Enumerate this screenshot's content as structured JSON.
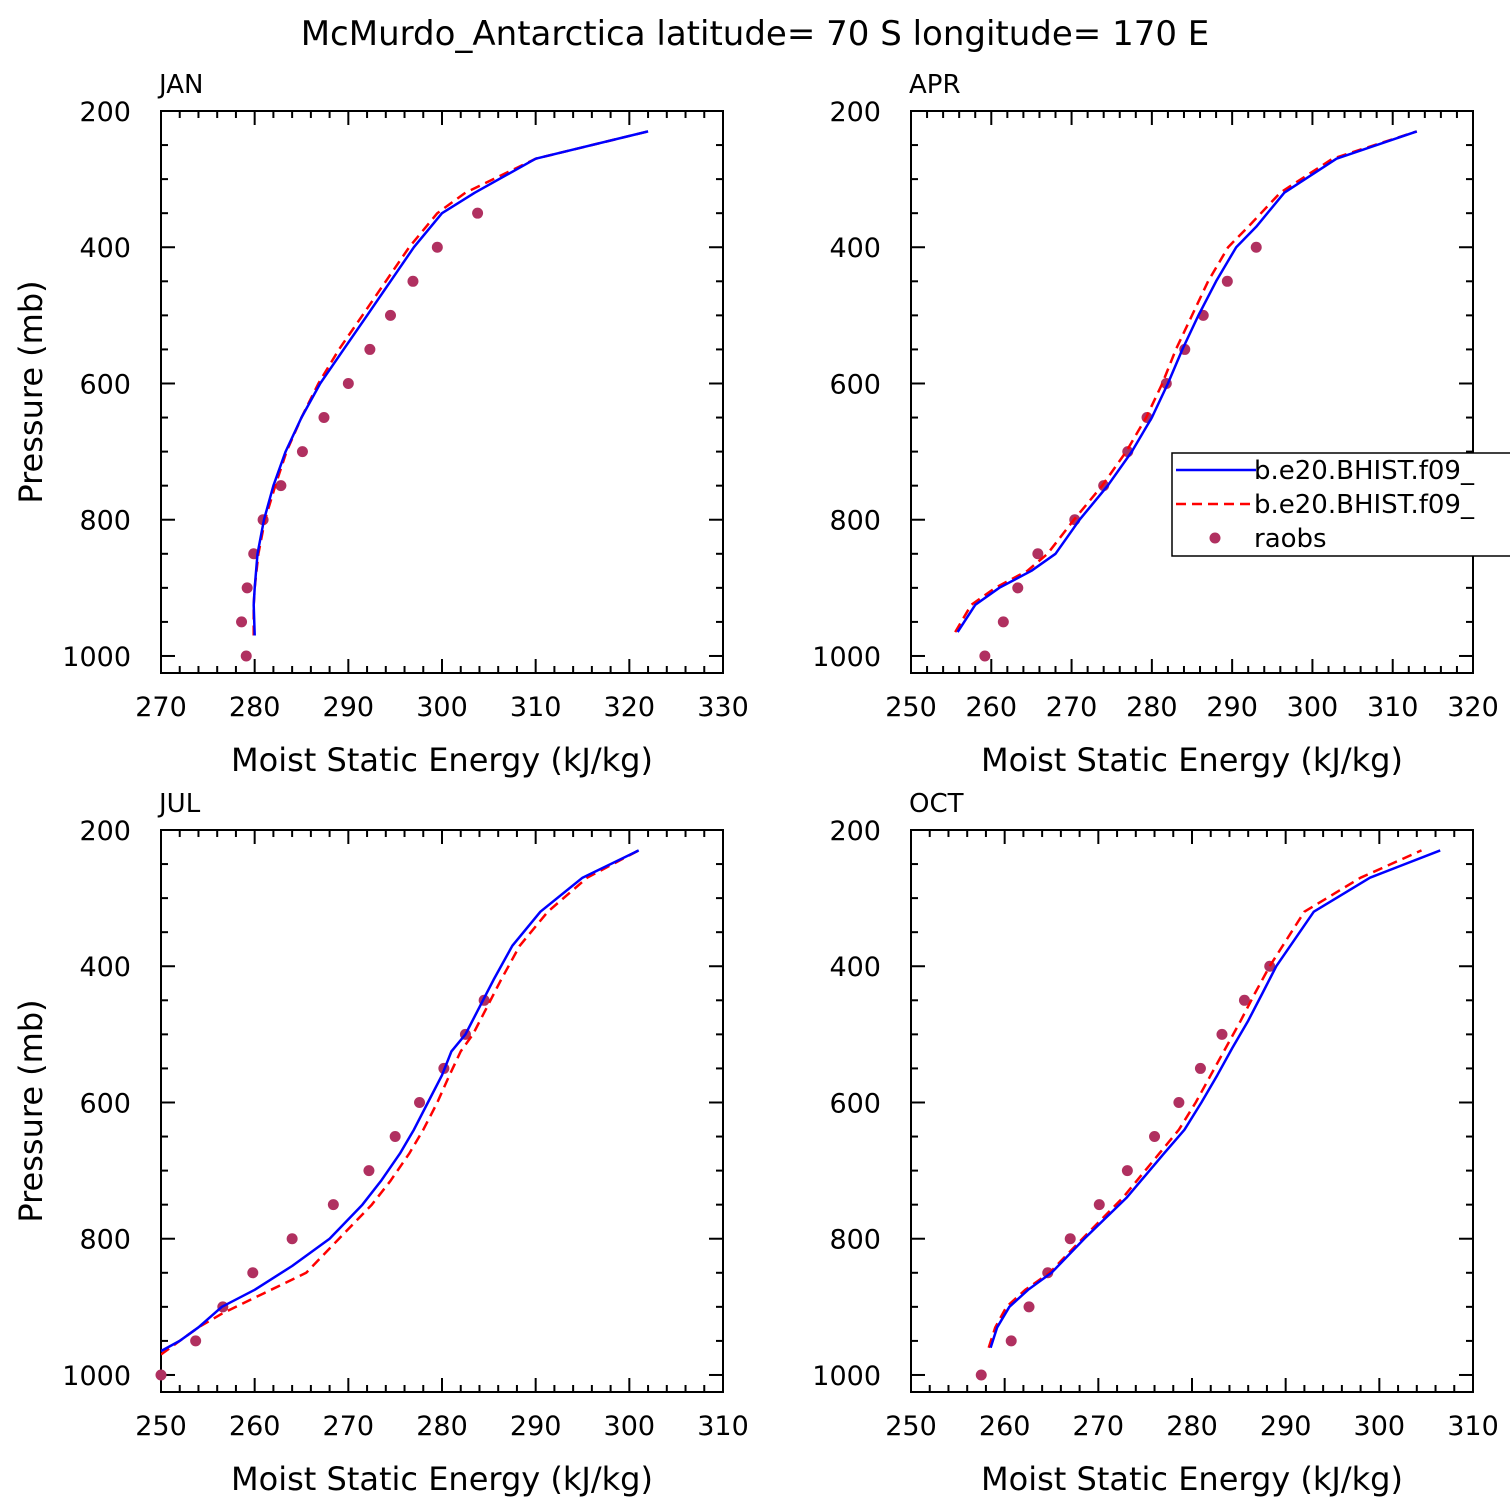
{
  "figure": {
    "title": "McMurdo_Antarctica  latitude= 70 S longitude= 170 E"
  },
  "legend": {
    "entries": [
      {
        "label": "b.e20.BHIST.f09_",
        "style": "solid",
        "color": "#0000ff"
      },
      {
        "label": "b.e20.BHIST.f09_",
        "style": "dashed",
        "color": "#ff0000"
      },
      {
        "label": "raobs",
        "style": "dot",
        "color": "#b03060"
      }
    ]
  },
  "chart_data": [
    {
      "type": "line",
      "panel_label": "JAN",
      "xlabel": "Moist Static Energy (kJ/kg)",
      "ylabel": "Pressure (mb)",
      "xlim": [
        270,
        330
      ],
      "ylim": [
        1025,
        200
      ],
      "xticks": [
        270,
        280,
        290,
        300,
        310,
        320,
        330
      ],
      "yticks": [
        200,
        400,
        600,
        800,
        1000
      ],
      "series": [
        {
          "name": "b.e20.BHIST.f09_",
          "color": "#0000ff",
          "style": "solid",
          "x": [
            280.0,
            279.9,
            280.0,
            280.3,
            281.0,
            282.0,
            283.3,
            285.0,
            287.0,
            289.5,
            292.0,
            294.5,
            297.0,
            300.0,
            303.5,
            310.0,
            322.0
          ],
          "y": [
            970,
            925,
            900,
            850,
            800,
            750,
            700,
            650,
            600,
            550,
            500,
            450,
            400,
            350,
            320,
            270,
            230
          ]
        },
        {
          "name": "b.e20.BHIST.f09_",
          "color": "#ff0000",
          "style": "dashed",
          "x": [
            279.9,
            279.9,
            280.0,
            280.4,
            281.1,
            282.2,
            283.4,
            285.0,
            286.8,
            289.0,
            291.5,
            294.0,
            296.5,
            299.5,
            302.5,
            310.0,
            322.0
          ],
          "y": [
            970,
            925,
            900,
            850,
            800,
            750,
            700,
            650,
            600,
            550,
            500,
            450,
            400,
            350,
            320,
            270,
            230
          ]
        },
        {
          "name": "raobs",
          "color": "#b03060",
          "style": "dot",
          "x": [
            279.1,
            278.6,
            279.2,
            279.9,
            280.9,
            282.8,
            285.1,
            287.4,
            290.0,
            292.3,
            294.5,
            296.9,
            299.5,
            303.8
          ],
          "y": [
            1000,
            950,
            900,
            850,
            800,
            750,
            700,
            650,
            600,
            550,
            500,
            450,
            400,
            350
          ]
        }
      ]
    },
    {
      "type": "line",
      "panel_label": "APR",
      "xlabel": "Moist Static Energy (kJ/kg)",
      "ylabel": "",
      "xlim": [
        250,
        320
      ],
      "ylim": [
        1025,
        200
      ],
      "xticks": [
        250,
        260,
        270,
        280,
        290,
        300,
        310,
        320
      ],
      "yticks": [
        200,
        400,
        600,
        800,
        1000
      ],
      "series": [
        {
          "name": "b.e20.BHIST.f09_",
          "color": "#0000ff",
          "style": "solid",
          "x": [
            255.8,
            258.0,
            261.0,
            265.0,
            268.0,
            271.0,
            274.5,
            277.5,
            280.0,
            282.0,
            283.8,
            285.8,
            288.0,
            290.5,
            293.0,
            296.5,
            303.0,
            313.0
          ],
          "y": [
            965,
            925,
            900,
            875,
            850,
            800,
            750,
            700,
            650,
            600,
            550,
            500,
            450,
            400,
            370,
            320,
            270,
            230
          ]
        },
        {
          "name": "b.e20.BHIST.f09_",
          "color": "#ff0000",
          "style": "dashed",
          "x": [
            255.5,
            257.5,
            260.5,
            264.5,
            267.0,
            270.3,
            273.8,
            276.8,
            279.3,
            281.3,
            283.0,
            285.0,
            287.0,
            289.5,
            292.0,
            296.0,
            302.5,
            313.0
          ],
          "y": [
            965,
            925,
            900,
            875,
            850,
            800,
            750,
            700,
            650,
            600,
            550,
            500,
            450,
            400,
            370,
            320,
            270,
            230
          ]
        },
        {
          "name": "raobs",
          "color": "#b03060",
          "style": "dot",
          "x": [
            259.2,
            261.5,
            263.3,
            265.8,
            270.4,
            274.0,
            277.0,
            279.4,
            281.8,
            284.1,
            286.4,
            289.4,
            293.0
          ],
          "y": [
            1000,
            950,
            900,
            850,
            800,
            750,
            700,
            650,
            600,
            550,
            500,
            450,
            400
          ]
        }
      ]
    },
    {
      "type": "line",
      "panel_label": "JUL",
      "xlabel": "Moist Static Energy (kJ/kg)",
      "ylabel": "Pressure (mb)",
      "xlim": [
        250,
        310
      ],
      "ylim": [
        1025,
        200
      ],
      "xticks": [
        250,
        260,
        270,
        280,
        290,
        300,
        310
      ],
      "yticks": [
        200,
        400,
        600,
        800,
        1000
      ],
      "series": [
        {
          "name": "b.e20.BHIST.f09_",
          "color": "#0000ff",
          "style": "solid",
          "x": [
            250.0,
            252.0,
            254.0,
            256.5,
            260.0,
            264.0,
            268.0,
            271.5,
            273.5,
            275.5,
            277.0,
            278.5,
            280.0,
            281.0,
            282.5,
            284.0,
            285.5,
            287.5,
            290.5,
            295.0,
            301.0
          ],
          "y": [
            965,
            950,
            930,
            900,
            875,
            840,
            800,
            750,
            715,
            675,
            640,
            600,
            560,
            525,
            500,
            460,
            420,
            370,
            320,
            270,
            230
          ]
        },
        {
          "name": "b.e20.BHIST.f09_",
          "color": "#ff0000",
          "style": "dashed",
          "x": [
            250.0,
            252.0,
            254.0,
            256.5,
            261.0,
            265.5,
            269.0,
            272.5,
            274.5,
            276.5,
            278.0,
            279.5,
            280.8,
            282.0,
            283.3,
            284.8,
            286.3,
            288.3,
            291.3,
            295.5,
            301.0
          ],
          "y": [
            970,
            950,
            930,
            910,
            880,
            850,
            800,
            750,
            715,
            675,
            640,
            600,
            560,
            525,
            500,
            460,
            420,
            370,
            320,
            270,
            230
          ]
        },
        {
          "name": "raobs",
          "color": "#b03060",
          "style": "dot",
          "x": [
            250.0,
            253.7,
            256.6,
            259.8,
            264.0,
            268.4,
            272.2,
            275.0,
            277.6,
            280.2,
            282.5,
            284.5
          ],
          "y": [
            1000,
            950,
            900,
            850,
            800,
            750,
            700,
            650,
            600,
            550,
            500,
            450
          ]
        }
      ]
    },
    {
      "type": "line",
      "panel_label": "OCT",
      "xlabel": "Moist Static Energy (kJ/kg)",
      "ylabel": "",
      "xlim": [
        250,
        310
      ],
      "ylim": [
        1025,
        200
      ],
      "xticks": [
        250,
        260,
        270,
        280,
        290,
        300,
        310
      ],
      "yticks": [
        200,
        400,
        600,
        800,
        1000
      ],
      "series": [
        {
          "name": "b.e20.BHIST.f09_",
          "color": "#0000ff",
          "style": "solid",
          "x": [
            258.5,
            259.2,
            260.5,
            262.5,
            265.0,
            268.5,
            273.0,
            277.0,
            279.2,
            281.0,
            282.7,
            284.3,
            286.0,
            287.5,
            289.0,
            293.0,
            299.0,
            306.5
          ],
          "y": [
            960,
            930,
            900,
            875,
            850,
            800,
            740,
            675,
            640,
            600,
            560,
            520,
            480,
            440,
            400,
            320,
            270,
            230
          ]
        },
        {
          "name": "b.e20.BHIST.f09_",
          "color": "#ff0000",
          "style": "dashed",
          "x": [
            258.3,
            259.0,
            260.2,
            262.2,
            264.8,
            268.3,
            272.6,
            276.5,
            278.6,
            280.4,
            282.0,
            283.6,
            285.2,
            286.7,
            288.3,
            292.0,
            298.0,
            304.5
          ],
          "y": [
            960,
            930,
            900,
            875,
            850,
            800,
            740,
            675,
            640,
            600,
            560,
            520,
            480,
            440,
            400,
            320,
            270,
            230
          ]
        },
        {
          "name": "raobs",
          "color": "#b03060",
          "style": "dot",
          "x": [
            257.5,
            260.7,
            262.6,
            264.6,
            267.0,
            270.1,
            273.1,
            276.0,
            278.6,
            280.9,
            283.2,
            285.6,
            288.3
          ],
          "y": [
            1000,
            950,
            900,
            850,
            800,
            750,
            700,
            650,
            600,
            550,
            500,
            450,
            400
          ]
        }
      ]
    }
  ]
}
